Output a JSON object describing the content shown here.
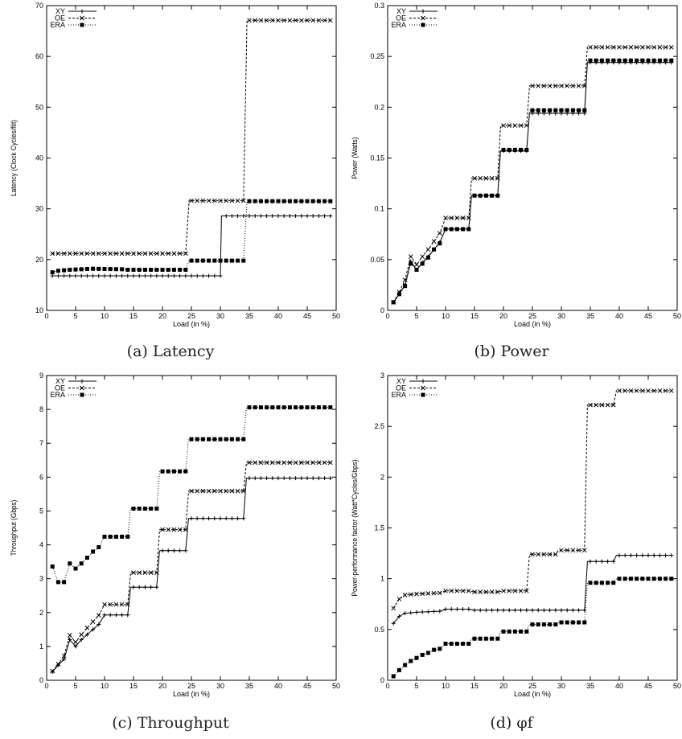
{
  "chart_data": [
    {
      "type": "line",
      "caption": "(a) Latency",
      "xlabel": "Load (in %)",
      "ylabel": "Latency (Clock Cycles/flit)",
      "xlim": [
        0,
        50
      ],
      "ylim": [
        10,
        70
      ],
      "xticks": [
        "0",
        "5",
        "10",
        "15",
        "20",
        "25",
        "30",
        "35",
        "40",
        "45",
        "50"
      ],
      "yticks": [
        "10",
        "20",
        "30",
        "40",
        "50",
        "60",
        "70"
      ],
      "legend": "top-left",
      "series": [
        {
          "name": "XY",
          "marker": "plus",
          "dash": "",
          "points": [
            [
              1,
              16.8
            ],
            [
              30,
              16.8
            ],
            [
              30.2,
              28.6
            ],
            [
              49,
              28.6
            ]
          ]
        },
        {
          "name": "OE",
          "marker": "cross",
          "dash": "3,2",
          "points": [
            [
              1,
              21.2
            ],
            [
              24,
              21.2
            ],
            [
              24.6,
              31.6
            ],
            [
              34,
              31.6
            ],
            [
              34.6,
              67.1
            ],
            [
              49,
              67.1
            ]
          ]
        },
        {
          "name": "ERA",
          "marker": "square",
          "dash": "1,2",
          "points": [
            [
              1,
              17.5
            ],
            [
              2,
              17.8
            ],
            [
              4,
              18.0
            ],
            [
              8,
              18.2
            ],
            [
              13,
              18.1
            ],
            [
              14,
              18.0
            ],
            [
              24,
              18.0
            ],
            [
              24.6,
              19.8
            ],
            [
              34,
              19.8
            ],
            [
              34.6,
              31.5
            ],
            [
              49,
              31.5
            ]
          ]
        }
      ]
    },
    {
      "type": "line",
      "caption": "(b) Power",
      "xlabel": "Load (in %)",
      "ylabel": "Power (Watts)",
      "xlim": [
        0,
        50
      ],
      "ylim": [
        0,
        0.3
      ],
      "xticks": [
        "0",
        "5",
        "10",
        "15",
        "20",
        "25",
        "30",
        "35",
        "40",
        "45",
        "50"
      ],
      "yticks": [
        "0",
        "0.05",
        "0.1",
        "0.15",
        "0.2",
        "0.25",
        "0.3"
      ],
      "legend": "top-left",
      "series": [
        {
          "name": "XY",
          "marker": "plus",
          "dash": "",
          "points": [
            [
              1,
              0.008
            ],
            [
              2,
              0.016
            ],
            [
              3,
              0.025
            ],
            [
              4,
              0.048
            ],
            [
              5,
              0.04
            ],
            [
              6,
              0.047
            ],
            [
              7,
              0.053
            ],
            [
              8,
              0.06
            ],
            [
              9,
              0.067
            ],
            [
              10,
              0.08
            ],
            [
              14,
              0.08
            ],
            [
              14.5,
              0.113
            ],
            [
              19,
              0.113
            ],
            [
              19.5,
              0.157
            ],
            [
              24,
              0.157
            ],
            [
              24.5,
              0.194
            ],
            [
              34,
              0.194
            ],
            [
              34.5,
              0.244
            ],
            [
              49,
              0.244
            ]
          ]
        },
        {
          "name": "OE",
          "marker": "cross",
          "dash": "3,2",
          "points": [
            [
              1,
              0.008
            ],
            [
              2,
              0.018
            ],
            [
              3,
              0.03
            ],
            [
              4,
              0.053
            ],
            [
              5,
              0.045
            ],
            [
              6,
              0.053
            ],
            [
              7,
              0.06
            ],
            [
              8,
              0.068
            ],
            [
              9,
              0.076
            ],
            [
              10,
              0.091
            ],
            [
              14,
              0.091
            ],
            [
              14.5,
              0.13
            ],
            [
              19,
              0.13
            ],
            [
              19.5,
              0.182
            ],
            [
              24,
              0.182
            ],
            [
              24.5,
              0.221
            ],
            [
              34,
              0.221
            ],
            [
              34.5,
              0.259
            ],
            [
              49,
              0.259
            ]
          ]
        },
        {
          "name": "ERA",
          "marker": "square",
          "dash": "1,2",
          "points": [
            [
              1,
              0.008
            ],
            [
              2,
              0.016
            ],
            [
              3,
              0.024
            ],
            [
              4,
              0.046
            ],
            [
              5,
              0.04
            ],
            [
              6,
              0.046
            ],
            [
              7,
              0.052
            ],
            [
              8,
              0.06
            ],
            [
              9,
              0.066
            ],
            [
              10,
              0.08
            ],
            [
              14,
              0.08
            ],
            [
              14.5,
              0.113
            ],
            [
              19,
              0.113
            ],
            [
              19.5,
              0.158
            ],
            [
              24,
              0.158
            ],
            [
              24.5,
              0.197
            ],
            [
              34,
              0.197
            ],
            [
              34.5,
              0.246
            ],
            [
              49,
              0.246
            ]
          ]
        }
      ]
    },
    {
      "type": "line",
      "caption": "(c) Throughput",
      "xlabel": "Load (in %)",
      "ylabel": "Throughput (Gbps)",
      "xlim": [
        0,
        50
      ],
      "ylim": [
        0,
        9
      ],
      "xticks": [
        "0",
        "5",
        "10",
        "15",
        "20",
        "25",
        "30",
        "35",
        "40",
        "45",
        "50"
      ],
      "yticks": [
        "0",
        "1",
        "2",
        "3",
        "4",
        "5",
        "6",
        "7",
        "8",
        "9"
      ],
      "legend": "top-left",
      "series": [
        {
          "name": "XY",
          "marker": "plus",
          "dash": "",
          "points": [
            [
              1,
              0.25
            ],
            [
              2,
              0.45
            ],
            [
              3,
              0.62
            ],
            [
              4,
              1.2
            ],
            [
              5,
              1.0
            ],
            [
              6,
              1.2
            ],
            [
              7,
              1.35
            ],
            [
              8,
              1.5
            ],
            [
              9,
              1.65
            ],
            [
              10,
              1.93
            ],
            [
              14,
              1.93
            ],
            [
              14.5,
              2.75
            ],
            [
              19,
              2.75
            ],
            [
              19.5,
              3.83
            ],
            [
              24,
              3.83
            ],
            [
              24.5,
              4.78
            ],
            [
              34,
              4.78
            ],
            [
              34.5,
              5.97
            ],
            [
              49,
              5.97
            ]
          ]
        },
        {
          "name": "OE",
          "marker": "cross",
          "dash": "3,2",
          "points": [
            [
              1,
              0.27
            ],
            [
              2,
              0.48
            ],
            [
              3,
              0.72
            ],
            [
              4,
              1.33
            ],
            [
              5,
              1.13
            ],
            [
              6,
              1.35
            ],
            [
              7,
              1.55
            ],
            [
              8,
              1.73
            ],
            [
              9,
              1.92
            ],
            [
              10,
              2.24
            ],
            [
              14,
              2.24
            ],
            [
              14.5,
              3.18
            ],
            [
              19,
              3.18
            ],
            [
              19.5,
              4.45
            ],
            [
              24,
              4.45
            ],
            [
              24.5,
              5.59
            ],
            [
              34,
              5.59
            ],
            [
              34.5,
              6.43
            ],
            [
              49,
              6.43
            ]
          ]
        },
        {
          "name": "ERA",
          "marker": "square",
          "dash": "1,2",
          "points": [
            [
              1,
              3.36
            ],
            [
              2,
              2.9
            ],
            [
              3,
              2.9
            ],
            [
              4,
              3.45
            ],
            [
              5,
              3.3
            ],
            [
              6,
              3.45
            ],
            [
              7,
              3.62
            ],
            [
              8,
              3.8
            ],
            [
              9,
              3.93
            ],
            [
              10,
              4.24
            ],
            [
              14,
              4.24
            ],
            [
              14.5,
              5.07
            ],
            [
              19,
              5.07
            ],
            [
              19.5,
              6.17
            ],
            [
              24,
              6.17
            ],
            [
              24.5,
              7.12
            ],
            [
              34,
              7.12
            ],
            [
              34.5,
              8.06
            ],
            [
              49,
              8.06
            ]
          ]
        }
      ]
    },
    {
      "type": "line",
      "caption": "(d) φf",
      "xlabel": "Load (in %)",
      "ylabel": "Power-performance factor (Watt*Cycles/Gbps)",
      "xlim": [
        0,
        50
      ],
      "ylim": [
        0,
        3
      ],
      "xticks": [
        "0",
        "5",
        "10",
        "15",
        "20",
        "25",
        "30",
        "35",
        "40",
        "45",
        "50"
      ],
      "yticks": [
        "0",
        "0.5",
        "1",
        "1.5",
        "2",
        "2.5",
        "3"
      ],
      "legend": "top-left",
      "series": [
        {
          "name": "XY",
          "marker": "plus",
          "dash": "",
          "points": [
            [
              1,
              0.56
            ],
            [
              2,
              0.63
            ],
            [
              3,
              0.66
            ],
            [
              5,
              0.67
            ],
            [
              9,
              0.68
            ],
            [
              10,
              0.7
            ],
            [
              14,
              0.7
            ],
            [
              15,
              0.69
            ],
            [
              24,
              0.69
            ],
            [
              25,
              0.69
            ],
            [
              34,
              0.69
            ],
            [
              34.5,
              1.17
            ],
            [
              39,
              1.17
            ],
            [
              39.5,
              1.23
            ],
            [
              49,
              1.23
            ]
          ]
        },
        {
          "name": "OE",
          "marker": "cross",
          "dash": "3,2",
          "points": [
            [
              1,
              0.71
            ],
            [
              2,
              0.8
            ],
            [
              3,
              0.84
            ],
            [
              5,
              0.85
            ],
            [
              9,
              0.86
            ],
            [
              10,
              0.88
            ],
            [
              14,
              0.88
            ],
            [
              15,
              0.87
            ],
            [
              19,
              0.87
            ],
            [
              20,
              0.88
            ],
            [
              24,
              0.88
            ],
            [
              24.5,
              1.24
            ],
            [
              29,
              1.24
            ],
            [
              29.5,
              1.28
            ],
            [
              34,
              1.28
            ],
            [
              34.5,
              2.71
            ],
            [
              39,
              2.71
            ],
            [
              39.5,
              2.85
            ],
            [
              49,
              2.85
            ]
          ]
        },
        {
          "name": "ERA",
          "marker": "square",
          "dash": "1,2",
          "points": [
            [
              1,
              0.04
            ],
            [
              2,
              0.1
            ],
            [
              3,
              0.15
            ],
            [
              4,
              0.19
            ],
            [
              5,
              0.22
            ],
            [
              6,
              0.25
            ],
            [
              7,
              0.27
            ],
            [
              8,
              0.3
            ],
            [
              9,
              0.31
            ],
            [
              10,
              0.36
            ],
            [
              14,
              0.36
            ],
            [
              14.5,
              0.41
            ],
            [
              19,
              0.41
            ],
            [
              19.5,
              0.48
            ],
            [
              24,
              0.48
            ],
            [
              24.5,
              0.55
            ],
            [
              29,
              0.55
            ],
            [
              29.5,
              0.57
            ],
            [
              34,
              0.57
            ],
            [
              34.5,
              0.96
            ],
            [
              39,
              0.96
            ],
            [
              39.5,
              1.0
            ],
            [
              49,
              1.0
            ]
          ]
        }
      ]
    }
  ]
}
